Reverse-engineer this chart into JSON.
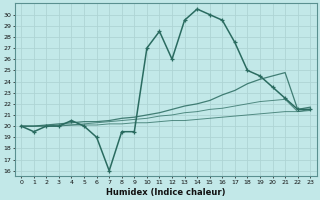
{
  "xlabel": "Humidex (Indice chaleur)",
  "bg_color": "#c2e8e8",
  "grid_color": "#aed4d4",
  "line_color": "#2a6b60",
  "xlim": [
    -0.5,
    23.5
  ],
  "ylim": [
    15.5,
    31.0
  ],
  "xticks": [
    0,
    1,
    2,
    3,
    4,
    5,
    6,
    7,
    8,
    9,
    10,
    11,
    12,
    13,
    14,
    15,
    16,
    17,
    18,
    19,
    20,
    21,
    22,
    23
  ],
  "yticks": [
    16,
    17,
    18,
    19,
    20,
    21,
    22,
    23,
    24,
    25,
    26,
    27,
    28,
    29,
    30
  ],
  "main_y": [
    20.0,
    19.5,
    20.0,
    20.0,
    20.5,
    20.0,
    19.0,
    16.0,
    19.5,
    19.5,
    27.0,
    28.5,
    26.0,
    29.5,
    30.5,
    30.0,
    29.5,
    27.5,
    25.0,
    24.5,
    23.5,
    22.5,
    21.5,
    21.5
  ],
  "trend1_y": [
    20.0,
    20.0,
    20.1,
    20.2,
    20.3,
    20.4,
    20.4,
    20.5,
    20.7,
    20.8,
    21.0,
    21.2,
    21.5,
    21.8,
    22.0,
    22.3,
    22.8,
    23.2,
    23.8,
    24.2,
    24.5,
    24.8,
    21.5,
    21.7
  ],
  "trend2_y": [
    20.0,
    20.0,
    20.0,
    20.1,
    20.1,
    20.2,
    20.3,
    20.4,
    20.5,
    20.6,
    20.7,
    20.9,
    21.0,
    21.2,
    21.3,
    21.5,
    21.6,
    21.8,
    22.0,
    22.2,
    22.3,
    22.4,
    21.3,
    21.5
  ],
  "trend3_y": [
    20.0,
    20.0,
    20.0,
    20.0,
    20.1,
    20.1,
    20.1,
    20.2,
    20.2,
    20.3,
    20.3,
    20.4,
    20.5,
    20.5,
    20.6,
    20.7,
    20.8,
    20.9,
    21.0,
    21.1,
    21.2,
    21.3,
    21.3,
    21.4
  ]
}
